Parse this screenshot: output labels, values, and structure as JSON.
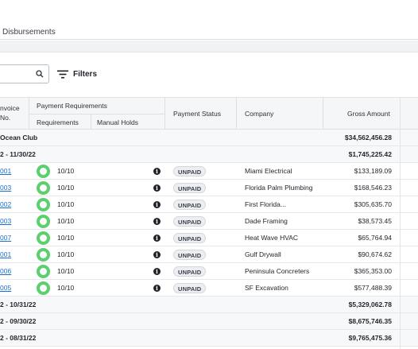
{
  "tabs": {
    "disbursements": "Disbursements"
  },
  "toolbar": {
    "filters_label": "Filters"
  },
  "header": {
    "invoice_no": "nvoice\nNo.",
    "invoice_line1": "nvoice",
    "invoice_line2": "No.",
    "payment_requirements": "Payment Requirements",
    "requirements": "Requirements",
    "manual_holds": "Manual Holds",
    "payment_status": "Payment Status",
    "company": "Company",
    "gross_amount": "Gross Amount"
  },
  "rows": [
    {
      "kind": "group",
      "label": "Ocean Club",
      "amount": "$34,562,456.28"
    },
    {
      "kind": "group",
      "label": "2 - 11/30/22",
      "amount": "$1,745,225.42"
    },
    {
      "kind": "detail",
      "invoice": "001",
      "requirements": "10/10",
      "status": "UNPAID",
      "company": "Miami Electrical",
      "amount": "$133,189.09"
    },
    {
      "kind": "detail",
      "invoice": "003",
      "requirements": "10/10",
      "status": "UNPAID",
      "company": "Florida Palm Plumbing",
      "amount": "$168,546.23"
    },
    {
      "kind": "detail",
      "invoice": "002",
      "requirements": "10/10",
      "status": "UNPAID",
      "company": "First Florida...",
      "amount": "$305,635.70"
    },
    {
      "kind": "detail",
      "invoice": "003",
      "requirements": "10/10",
      "status": "UNPAID",
      "company": "Dade Framing",
      "amount": "$38,573.45"
    },
    {
      "kind": "detail",
      "invoice": "007",
      "requirements": "10/10",
      "status": "UNPAID",
      "company": "Heat Wave HVAC",
      "amount": "$65,764.94"
    },
    {
      "kind": "detail",
      "invoice": "001",
      "requirements": "10/10",
      "status": "UNPAID",
      "company": "Gulf Drywall",
      "amount": "$90,674.62"
    },
    {
      "kind": "detail",
      "invoice": "006",
      "requirements": "10/10",
      "status": "UNPAID",
      "company": "Peninsula Concreters",
      "amount": "$365,353.00"
    },
    {
      "kind": "detail",
      "invoice": "005",
      "requirements": "10/10",
      "status": "UNPAID",
      "company": "SF Excavation",
      "amount": "$577,488.39"
    },
    {
      "kind": "group",
      "label": "2 - 10/31/22",
      "amount": "$5,329,062.78"
    },
    {
      "kind": "group",
      "label": "2 - 09/30/22",
      "amount": "$8,675,746.35"
    },
    {
      "kind": "group",
      "label": "2 - 08/31/22",
      "amount": "$9,765,475.36"
    }
  ]
}
